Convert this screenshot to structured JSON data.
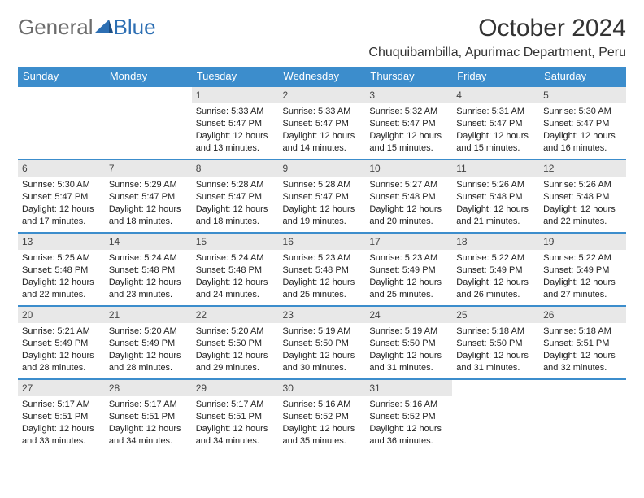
{
  "logo": {
    "word1": "General",
    "word2": "Blue"
  },
  "title": "October 2024",
  "location": "Chuquibambilla, Apurimac Department, Peru",
  "colors": {
    "header_bg": "#3c8dcc",
    "header_text": "#ffffff",
    "row_border": "#3c8dcc",
    "daynum_bg": "#e8e8e8",
    "logo_gray": "#6c6c6c",
    "logo_blue": "#2d6fb3",
    "text": "#222222",
    "background": "#ffffff"
  },
  "typography": {
    "title_fontsize": 30,
    "location_fontsize": 16,
    "day_header_fontsize": 13,
    "cell_fontsize": 11
  },
  "day_headers": [
    "Sunday",
    "Monday",
    "Tuesday",
    "Wednesday",
    "Thursday",
    "Friday",
    "Saturday"
  ],
  "weeks": [
    [
      {
        "n": "",
        "sr": "",
        "ss": "",
        "dl": "",
        "empty": true
      },
      {
        "n": "",
        "sr": "",
        "ss": "",
        "dl": "",
        "empty": true
      },
      {
        "n": "1",
        "sr": "Sunrise: 5:33 AM",
        "ss": "Sunset: 5:47 PM",
        "dl": "Daylight: 12 hours and 13 minutes."
      },
      {
        "n": "2",
        "sr": "Sunrise: 5:33 AM",
        "ss": "Sunset: 5:47 PM",
        "dl": "Daylight: 12 hours and 14 minutes."
      },
      {
        "n": "3",
        "sr": "Sunrise: 5:32 AM",
        "ss": "Sunset: 5:47 PM",
        "dl": "Daylight: 12 hours and 15 minutes."
      },
      {
        "n": "4",
        "sr": "Sunrise: 5:31 AM",
        "ss": "Sunset: 5:47 PM",
        "dl": "Daylight: 12 hours and 15 minutes."
      },
      {
        "n": "5",
        "sr": "Sunrise: 5:30 AM",
        "ss": "Sunset: 5:47 PM",
        "dl": "Daylight: 12 hours and 16 minutes."
      }
    ],
    [
      {
        "n": "6",
        "sr": "Sunrise: 5:30 AM",
        "ss": "Sunset: 5:47 PM",
        "dl": "Daylight: 12 hours and 17 minutes."
      },
      {
        "n": "7",
        "sr": "Sunrise: 5:29 AM",
        "ss": "Sunset: 5:47 PM",
        "dl": "Daylight: 12 hours and 18 minutes."
      },
      {
        "n": "8",
        "sr": "Sunrise: 5:28 AM",
        "ss": "Sunset: 5:47 PM",
        "dl": "Daylight: 12 hours and 18 minutes."
      },
      {
        "n": "9",
        "sr": "Sunrise: 5:28 AM",
        "ss": "Sunset: 5:47 PM",
        "dl": "Daylight: 12 hours and 19 minutes."
      },
      {
        "n": "10",
        "sr": "Sunrise: 5:27 AM",
        "ss": "Sunset: 5:48 PM",
        "dl": "Daylight: 12 hours and 20 minutes."
      },
      {
        "n": "11",
        "sr": "Sunrise: 5:26 AM",
        "ss": "Sunset: 5:48 PM",
        "dl": "Daylight: 12 hours and 21 minutes."
      },
      {
        "n": "12",
        "sr": "Sunrise: 5:26 AM",
        "ss": "Sunset: 5:48 PM",
        "dl": "Daylight: 12 hours and 22 minutes."
      }
    ],
    [
      {
        "n": "13",
        "sr": "Sunrise: 5:25 AM",
        "ss": "Sunset: 5:48 PM",
        "dl": "Daylight: 12 hours and 22 minutes."
      },
      {
        "n": "14",
        "sr": "Sunrise: 5:24 AM",
        "ss": "Sunset: 5:48 PM",
        "dl": "Daylight: 12 hours and 23 minutes."
      },
      {
        "n": "15",
        "sr": "Sunrise: 5:24 AM",
        "ss": "Sunset: 5:48 PM",
        "dl": "Daylight: 12 hours and 24 minutes."
      },
      {
        "n": "16",
        "sr": "Sunrise: 5:23 AM",
        "ss": "Sunset: 5:48 PM",
        "dl": "Daylight: 12 hours and 25 minutes."
      },
      {
        "n": "17",
        "sr": "Sunrise: 5:23 AM",
        "ss": "Sunset: 5:49 PM",
        "dl": "Daylight: 12 hours and 25 minutes."
      },
      {
        "n": "18",
        "sr": "Sunrise: 5:22 AM",
        "ss": "Sunset: 5:49 PM",
        "dl": "Daylight: 12 hours and 26 minutes."
      },
      {
        "n": "19",
        "sr": "Sunrise: 5:22 AM",
        "ss": "Sunset: 5:49 PM",
        "dl": "Daylight: 12 hours and 27 minutes."
      }
    ],
    [
      {
        "n": "20",
        "sr": "Sunrise: 5:21 AM",
        "ss": "Sunset: 5:49 PM",
        "dl": "Daylight: 12 hours and 28 minutes."
      },
      {
        "n": "21",
        "sr": "Sunrise: 5:20 AM",
        "ss": "Sunset: 5:49 PM",
        "dl": "Daylight: 12 hours and 28 minutes."
      },
      {
        "n": "22",
        "sr": "Sunrise: 5:20 AM",
        "ss": "Sunset: 5:50 PM",
        "dl": "Daylight: 12 hours and 29 minutes."
      },
      {
        "n": "23",
        "sr": "Sunrise: 5:19 AM",
        "ss": "Sunset: 5:50 PM",
        "dl": "Daylight: 12 hours and 30 minutes."
      },
      {
        "n": "24",
        "sr": "Sunrise: 5:19 AM",
        "ss": "Sunset: 5:50 PM",
        "dl": "Daylight: 12 hours and 31 minutes."
      },
      {
        "n": "25",
        "sr": "Sunrise: 5:18 AM",
        "ss": "Sunset: 5:50 PM",
        "dl": "Daylight: 12 hours and 31 minutes."
      },
      {
        "n": "26",
        "sr": "Sunrise: 5:18 AM",
        "ss": "Sunset: 5:51 PM",
        "dl": "Daylight: 12 hours and 32 minutes."
      }
    ],
    [
      {
        "n": "27",
        "sr": "Sunrise: 5:17 AM",
        "ss": "Sunset: 5:51 PM",
        "dl": "Daylight: 12 hours and 33 minutes."
      },
      {
        "n": "28",
        "sr": "Sunrise: 5:17 AM",
        "ss": "Sunset: 5:51 PM",
        "dl": "Daylight: 12 hours and 34 minutes."
      },
      {
        "n": "29",
        "sr": "Sunrise: 5:17 AM",
        "ss": "Sunset: 5:51 PM",
        "dl": "Daylight: 12 hours and 34 minutes."
      },
      {
        "n": "30",
        "sr": "Sunrise: 5:16 AM",
        "ss": "Sunset: 5:52 PM",
        "dl": "Daylight: 12 hours and 35 minutes."
      },
      {
        "n": "31",
        "sr": "Sunrise: 5:16 AM",
        "ss": "Sunset: 5:52 PM",
        "dl": "Daylight: 12 hours and 36 minutes."
      },
      {
        "n": "",
        "sr": "",
        "ss": "",
        "dl": "",
        "empty": true
      },
      {
        "n": "",
        "sr": "",
        "ss": "",
        "dl": "",
        "empty": true
      }
    ]
  ]
}
